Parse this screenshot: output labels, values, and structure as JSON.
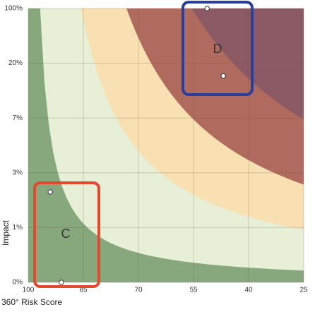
{
  "chart_data": {
    "type": "scatter",
    "xlabel": "360° Risk Score",
    "ylabel": "Impact",
    "x": [
      51.3,
      46.9,
      94.0,
      91.0
    ],
    "values": [
      100,
      17,
      2.3,
      0
    ],
    "point_color": "#ffffff",
    "xlim": [
      100,
      25
    ],
    "xticks": [
      100,
      85,
      70,
      55,
      40,
      25
    ],
    "ylim": [
      0,
      100
    ],
    "yticks": [
      {
        "value": 0,
        "label": "0%"
      },
      {
        "value": 1,
        "label": "1%"
      },
      {
        "value": 3,
        "label": "3%"
      },
      {
        "value": 7,
        "label": "7%"
      },
      {
        "value": 20,
        "label": "20%"
      },
      {
        "value": 100,
        "label": "100%"
      }
    ],
    "yscale": "piecewise",
    "grid": true,
    "zone_colors": [
      "#87a77d",
      "#e7efd6",
      "#f8e0b2",
      "#b16a5e",
      "#8c5a64"
    ],
    "annotations": [
      {
        "text": "C",
        "color": "#e2492f"
      },
      {
        "text": "D",
        "color": "#2a3e9e"
      }
    ]
  }
}
